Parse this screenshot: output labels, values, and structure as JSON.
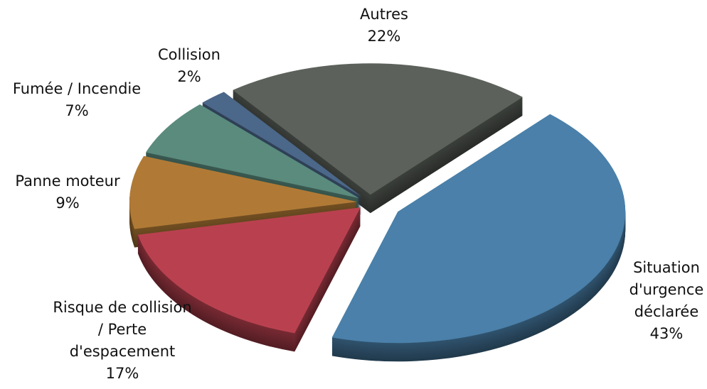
{
  "chart_data": {
    "type": "pie",
    "categories": [
      "Situation d'urgence déclarée",
      "Risque de collision / Perte d'espacement",
      "Panne moteur",
      "Fumée / Incendie",
      "Collision",
      "Autres"
    ],
    "values": [
      43,
      17,
      9,
      7,
      2,
      22
    ],
    "value_labels": [
      "43%",
      "17%",
      "9%",
      "7%",
      "2%",
      "22%"
    ],
    "colors": [
      "#4a80a9",
      "#b9414f",
      "#b07a36",
      "#5a8b7d",
      "#4b6789",
      "#5c625b"
    ]
  }
}
